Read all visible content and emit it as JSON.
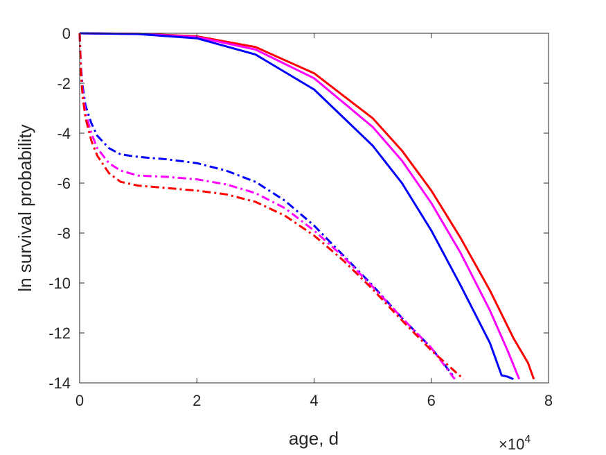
{
  "chart_data": {
    "type": "line",
    "xlabel": "age, d",
    "ylabel": "ln survival probability",
    "x_exponent_label": "×10",
    "x_exponent_power": "4",
    "xlim": [
      0,
      80000
    ],
    "ylim": [
      -14,
      0
    ],
    "xticks": [
      0,
      20000,
      40000,
      60000,
      80000
    ],
    "xtick_labels": [
      "0",
      "2",
      "4",
      "6",
      "8"
    ],
    "yticks": [
      0,
      -2,
      -4,
      -6,
      -8,
      -10,
      -12,
      -14
    ],
    "ytick_labels": [
      "0",
      "-2",
      "-4",
      "-6",
      "-8",
      "-10",
      "-12",
      "-14"
    ],
    "grid": false,
    "box": true,
    "series": [
      {
        "color": "#ff0000",
        "style": "solid",
        "points": [
          [
            0,
            0
          ],
          [
            10000,
            -0.02
          ],
          [
            20000,
            -0.12
          ],
          [
            30000,
            -0.55
          ],
          [
            40000,
            -1.6
          ],
          [
            50000,
            -3.4
          ],
          [
            55000,
            -4.7
          ],
          [
            60000,
            -6.3
          ],
          [
            65000,
            -8.2
          ],
          [
            70000,
            -10.3
          ],
          [
            74000,
            -12.2
          ],
          [
            76500,
            -13.2
          ],
          [
            77500,
            -13.85
          ]
        ]
      },
      {
        "color": "#ff00ff",
        "style": "solid",
        "points": [
          [
            0,
            0
          ],
          [
            10000,
            -0.02
          ],
          [
            20000,
            -0.15
          ],
          [
            30000,
            -0.65
          ],
          [
            40000,
            -1.8
          ],
          [
            50000,
            -3.75
          ],
          [
            55000,
            -5.1
          ],
          [
            60000,
            -6.8
          ],
          [
            65000,
            -8.8
          ],
          [
            70000,
            -11.1
          ],
          [
            73000,
            -12.7
          ],
          [
            75000,
            -13.85
          ]
        ]
      },
      {
        "color": "#0000ff",
        "style": "solid",
        "points": [
          [
            0,
            0
          ],
          [
            10000,
            -0.03
          ],
          [
            20000,
            -0.2
          ],
          [
            30000,
            -0.85
          ],
          [
            40000,
            -2.25
          ],
          [
            50000,
            -4.5
          ],
          [
            55000,
            -6.0
          ],
          [
            60000,
            -7.9
          ],
          [
            65000,
            -10.1
          ],
          [
            70000,
            -12.4
          ],
          [
            72000,
            -13.7
          ],
          [
            73000,
            -13.75
          ],
          [
            74000,
            -13.85
          ]
        ]
      },
      {
        "color": "#0000ff",
        "style": "dashdot",
        "points": [
          [
            0,
            0
          ],
          [
            200,
            -1.3
          ],
          [
            500,
            -2.1
          ],
          [
            1000,
            -2.9
          ],
          [
            2000,
            -3.6
          ],
          [
            3000,
            -4.1
          ],
          [
            5000,
            -4.6
          ],
          [
            7000,
            -4.85
          ],
          [
            10000,
            -4.95
          ],
          [
            15000,
            -5.05
          ],
          [
            20000,
            -5.2
          ],
          [
            25000,
            -5.5
          ],
          [
            30000,
            -5.95
          ],
          [
            35000,
            -6.7
          ],
          [
            40000,
            -7.7
          ],
          [
            45000,
            -8.9
          ],
          [
            50000,
            -10.1
          ],
          [
            55000,
            -11.4
          ],
          [
            60000,
            -12.6
          ],
          [
            64000,
            -13.8
          ]
        ]
      },
      {
        "color": "#ff00ff",
        "style": "dashdot",
        "points": [
          [
            0,
            0
          ],
          [
            200,
            -1.4
          ],
          [
            500,
            -2.3
          ],
          [
            1000,
            -3.2
          ],
          [
            2000,
            -4.0
          ],
          [
            3000,
            -4.6
          ],
          [
            5000,
            -5.2
          ],
          [
            7000,
            -5.5
          ],
          [
            10000,
            -5.7
          ],
          [
            15000,
            -5.75
          ],
          [
            20000,
            -5.85
          ],
          [
            25000,
            -6.05
          ],
          [
            30000,
            -6.4
          ],
          [
            35000,
            -7.0
          ],
          [
            40000,
            -7.9
          ],
          [
            45000,
            -8.95
          ],
          [
            50000,
            -10.15
          ],
          [
            55000,
            -11.4
          ],
          [
            60000,
            -12.6
          ],
          [
            64000,
            -13.85
          ]
        ]
      },
      {
        "color": "#ff0000",
        "style": "dashdot",
        "points": [
          [
            0,
            0
          ],
          [
            200,
            -1.5
          ],
          [
            500,
            -2.5
          ],
          [
            1000,
            -3.4
          ],
          [
            2000,
            -4.3
          ],
          [
            3000,
            -4.9
          ],
          [
            5000,
            -5.6
          ],
          [
            7000,
            -5.95
          ],
          [
            10000,
            -6.1
          ],
          [
            15000,
            -6.2
          ],
          [
            20000,
            -6.3
          ],
          [
            25000,
            -6.45
          ],
          [
            30000,
            -6.75
          ],
          [
            35000,
            -7.3
          ],
          [
            40000,
            -8.1
          ],
          [
            45000,
            -9.1
          ],
          [
            50000,
            -10.25
          ],
          [
            55000,
            -11.5
          ],
          [
            60000,
            -12.7
          ],
          [
            65500,
            -13.85
          ]
        ]
      }
    ]
  }
}
